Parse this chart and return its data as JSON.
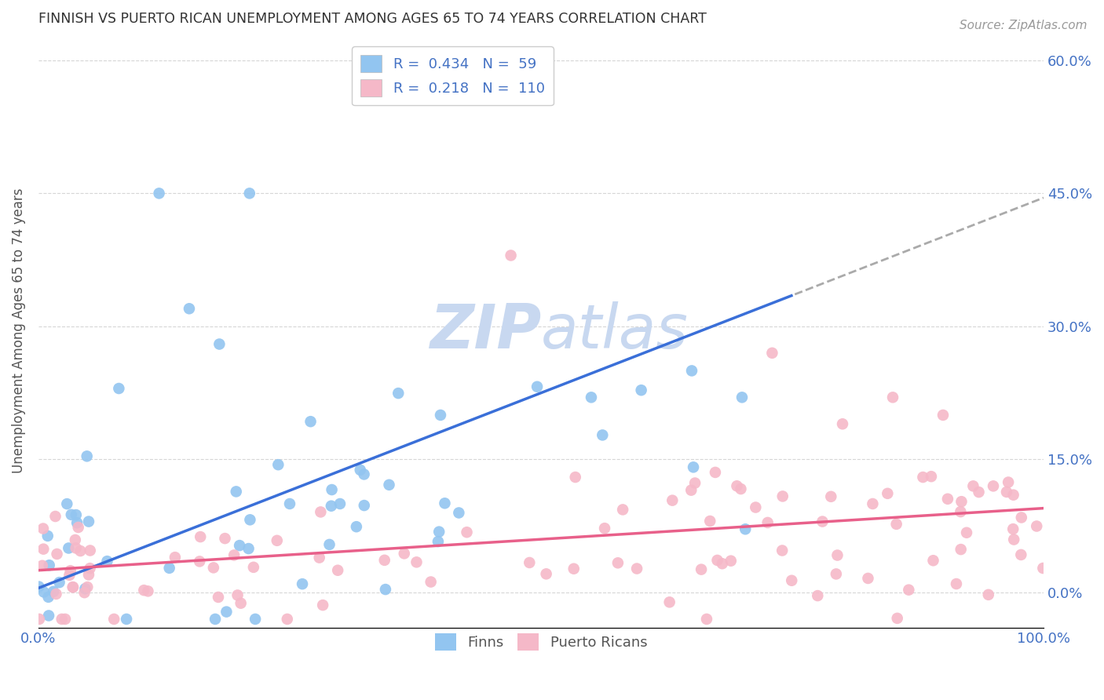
{
  "title": "FINNISH VS PUERTO RICAN UNEMPLOYMENT AMONG AGES 65 TO 74 YEARS CORRELATION CHART",
  "source": "Source: ZipAtlas.com",
  "ylabel_label": "Unemployment Among Ages 65 to 74 years",
  "legend_labels": [
    "Finns",
    "Puerto Ricans"
  ],
  "R_finn": 0.434,
  "N_finn": 59,
  "R_pr": 0.218,
  "N_pr": 110,
  "finn_color": "#92C5F0",
  "pr_color": "#F5B8C8",
  "finn_line_color": "#3A6FD8",
  "pr_line_color": "#E8608A",
  "dashed_extension_color": "#AAAAAA",
  "watermark_zip_color": "#C8D8F0",
  "watermark_atlas_color": "#C8D8F0",
  "background_color": "#FFFFFF",
  "grid_color": "#CCCCCC",
  "title_color": "#333333",
  "axis_label_color": "#555555",
  "tick_label_color": "#4472C4",
  "legend_R_color": "#4472C4",
  "xlim": [
    0,
    100
  ],
  "ylim": [
    -4,
    63
  ],
  "yticks": [
    0,
    15,
    30,
    45,
    60
  ],
  "ytick_labels": [
    "0.0%",
    "15.0%",
    "30.0%",
    "45.0%",
    "60.0%"
  ],
  "finn_line_x_solid_max": 75,
  "finn_line_intercept": 0.5,
  "finn_line_slope": 0.44,
  "pr_line_intercept": 2.5,
  "pr_line_slope": 0.07
}
